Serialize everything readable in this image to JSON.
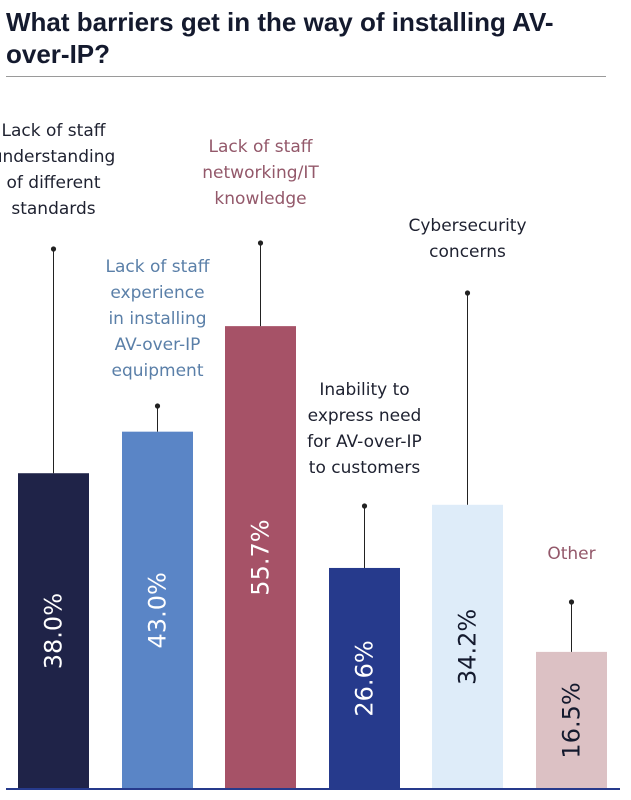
{
  "title": "What barriers get in the way of installing AV-over-IP?",
  "chart_data": {
    "type": "bar",
    "ylim": [
      0,
      60
    ],
    "grid": false,
    "categories": [
      "Lack of staff understanding of different standards",
      "Lack of staff experience in installing AV-over-IP equipment",
      "Lack of staff networking/IT knowledge",
      "Inability to express need for AV-over-IP to customers",
      "Cybersecurity concerns",
      "Other"
    ],
    "category_lines": [
      [
        "Lack of staff",
        "understanding",
        "of different",
        "standards"
      ],
      [
        "Lack of staff",
        "experience",
        "in installing",
        "AV-over-IP",
        "equipment"
      ],
      [
        "Lack of staff",
        "networking/IT",
        "knowledge"
      ],
      [
        "Inability to",
        "express need",
        "for AV-over-IP",
        "to customers"
      ],
      [
        "Cybersecurity",
        "concerns"
      ],
      [
        "Other"
      ]
    ],
    "values": [
      38.0,
      43.0,
      55.7,
      26.6,
      34.2,
      16.5
    ],
    "value_labels": [
      "38.0%",
      "43.0%",
      "55.7%",
      "26.6%",
      "34.2%",
      "16.5%"
    ],
    "bar_colors": [
      "#1f2348",
      "#5a85c6",
      "#a65267",
      "#263a8c",
      "#deecf9",
      "#dcc1c4"
    ],
    "value_label_colors": [
      "#ffffff",
      "#ffffff",
      "#ffffff",
      "#ffffff",
      "#141a2e",
      "#141a2e"
    ],
    "category_label_colors": [
      "#1e2130",
      "#5a7fa8",
      "#93586a",
      "#1e2130",
      "#1e2130",
      "#93586a"
    ],
    "axis_color": "#263a8c"
  }
}
